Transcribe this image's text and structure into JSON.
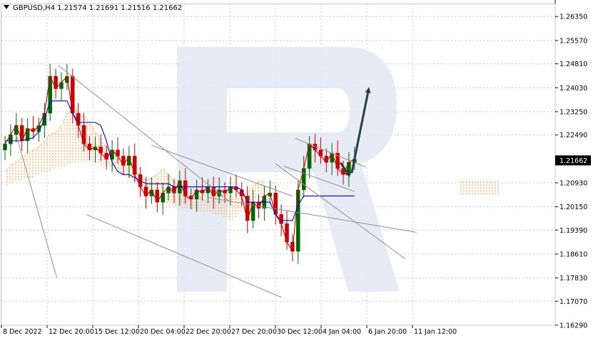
{
  "chart_data": {
    "type": "candlestick",
    "title": "GBPUSD,H4  1.21574 1.21691 1.21516 1.21662",
    "symbol": "GBPUSD,H4",
    "ohlc_readout": {
      "open": "1.21574",
      "high": "1.21691",
      "low": "1.21516",
      "close": "1.21662"
    },
    "current_price": "1.21662",
    "y_ticks": [
      "1.26350",
      "1.25570",
      "1.24810",
      "1.24030",
      "1.23250",
      "1.22490",
      "1.21662",
      "1.20930",
      "1.20150",
      "1.19390",
      "1.18610",
      "1.17830",
      "1.17070",
      "1.16290"
    ],
    "y_tick_values": [
      1.2635,
      1.2557,
      1.2481,
      1.2403,
      1.2325,
      1.2249,
      1.21662,
      1.2093,
      1.2015,
      1.1939,
      1.1861,
      1.1783,
      1.1707,
      1.1629
    ],
    "ylim": [
      1.1629,
      1.2675
    ],
    "x_ticks": [
      "8 Dec 2022",
      "12 Dec 20:00",
      "15 Dec 12:00",
      "20 Dec 04:00",
      "22 Dec 20:00",
      "27 Dec 20:00",
      "30 Dec 12:00",
      "4 Jan 04:00",
      "6 Jan 20:00",
      "11 Jan 12:00"
    ],
    "grid": true,
    "watermark": "R",
    "series": [
      {
        "type": "close_path",
        "color": "#cc0000",
        "values": [
          1.222,
          1.225,
          1.228,
          1.223,
          1.227,
          1.226,
          1.228,
          1.232,
          1.244,
          1.24,
          1.242,
          1.244,
          1.232,
          1.228,
          1.222,
          1.22,
          1.221,
          1.219,
          1.217,
          1.22,
          1.218,
          1.215,
          1.218,
          1.212,
          1.208,
          1.205,
          1.207,
          1.203,
          1.206,
          1.208,
          1.206,
          1.21,
          1.205,
          1.204,
          1.207,
          1.206,
          1.208,
          1.205,
          1.207,
          1.206,
          1.208,
          1.207,
          1.205,
          1.197,
          1.203,
          1.201,
          1.205,
          1.206,
          1.199,
          1.196,
          1.19,
          1.187,
          1.207,
          1.214,
          1.222,
          1.22,
          1.218,
          1.216,
          1.219,
          1.214,
          1.212,
          1.216,
          1.217
        ]
      },
      {
        "type": "line",
        "name": "",
        "color": "#0000cc",
        "values": [
          1.223,
          1.223,
          1.223,
          1.223,
          1.2235,
          1.224,
          1.226,
          1.23,
          1.236,
          1.236,
          1.236,
          1.236,
          1.232,
          1.229,
          1.229,
          1.229,
          1.229,
          1.228,
          1.223,
          1.216,
          1.213,
          1.212,
          1.212,
          1.211,
          1.21,
          1.209,
          1.209,
          1.209,
          1.209,
          1.209,
          1.208,
          1.208,
          1.208,
          1.208,
          1.208,
          1.208,
          1.208,
          1.208,
          1.208,
          1.208,
          1.208,
          1.208,
          1.207,
          1.203,
          1.203,
          1.203,
          1.203,
          1.203,
          1.199,
          1.197,
          1.197,
          1.197,
          1.202,
          1.205,
          1.205,
          1.205,
          1.205,
          1.205,
          1.205,
          1.205,
          1.205,
          1.205,
          1.205
        ]
      },
      {
        "type": "cloud",
        "name": "",
        "color": "#e8a050",
        "upper": [
          1.213,
          1.215,
          1.216,
          1.218,
          1.219,
          1.22,
          1.221,
          1.223,
          1.225,
          1.226,
          1.228,
          1.232,
          1.235,
          1.232,
          1.231,
          1.229,
          1.226,
          1.223,
          1.221,
          1.22,
          1.218,
          1.216,
          1.215,
          1.213,
          1.212,
          1.21,
          1.211,
          1.212,
          1.214,
          1.212,
          1.21,
          1.208,
          1.206,
          1.205,
          1.205,
          1.204,
          1.203,
          1.204,
          1.205,
          1.206,
          1.205,
          1.204,
          1.205,
          1.206,
          1.208,
          1.21,
          1.21
        ],
        "lower": [
          1.208,
          1.209,
          1.21,
          1.21,
          1.211,
          1.211,
          1.212,
          1.213,
          1.213,
          1.214,
          1.214,
          1.215,
          1.216,
          1.216,
          1.216,
          1.216,
          1.216,
          1.215,
          1.215,
          1.214,
          1.213,
          1.212,
          1.211,
          1.21,
          1.208,
          1.206,
          1.205,
          1.204,
          1.203,
          1.202,
          1.202,
          1.201,
          1.201,
          1.201,
          1.2,
          1.2,
          1.2,
          1.199,
          1.199,
          1.198,
          1.197,
          1.198,
          1.2,
          1.201,
          1.203,
          1.204,
          1.205
        ]
      }
    ],
    "annotations": [
      {
        "type": "trendline",
        "from": [
          2,
          1.2249
        ],
        "to": [
          9.2,
          1.1783
        ]
      },
      {
        "type": "trendline",
        "from": [
          9.5,
          1.2475
        ],
        "to": [
          40,
          1.203
        ]
      },
      {
        "type": "trendline",
        "from": [
          14.4,
          1.199
        ],
        "to": [
          49,
          1.172
        ]
      },
      {
        "type": "trendline",
        "from": [
          26,
          1.2215
        ],
        "to": [
          51,
          1.205
        ]
      },
      {
        "type": "trendline",
        "from": [
          36,
          1.2045
        ],
        "to": [
          73,
          1.1932
        ]
      },
      {
        "type": "trendline",
        "from": [
          48,
          1.2155
        ],
        "to": [
          71,
          1.1845
        ]
      },
      {
        "type": "trendline",
        "from": [
          51.5,
          1.2238
        ],
        "to": [
          64,
          1.2144
        ]
      },
      {
        "type": "trendline",
        "from": [
          49.5,
          1.2147
        ],
        "to": [
          62,
          1.2065
        ]
      },
      {
        "type": "arrow",
        "from": [
          59.5,
          1.2159
        ],
        "to": [
          61,
          1.2118
        ]
      },
      {
        "type": "arrow",
        "from": [
          61.5,
          1.2125
        ],
        "to": [
          64.5,
          1.2398
        ]
      }
    ]
  }
}
